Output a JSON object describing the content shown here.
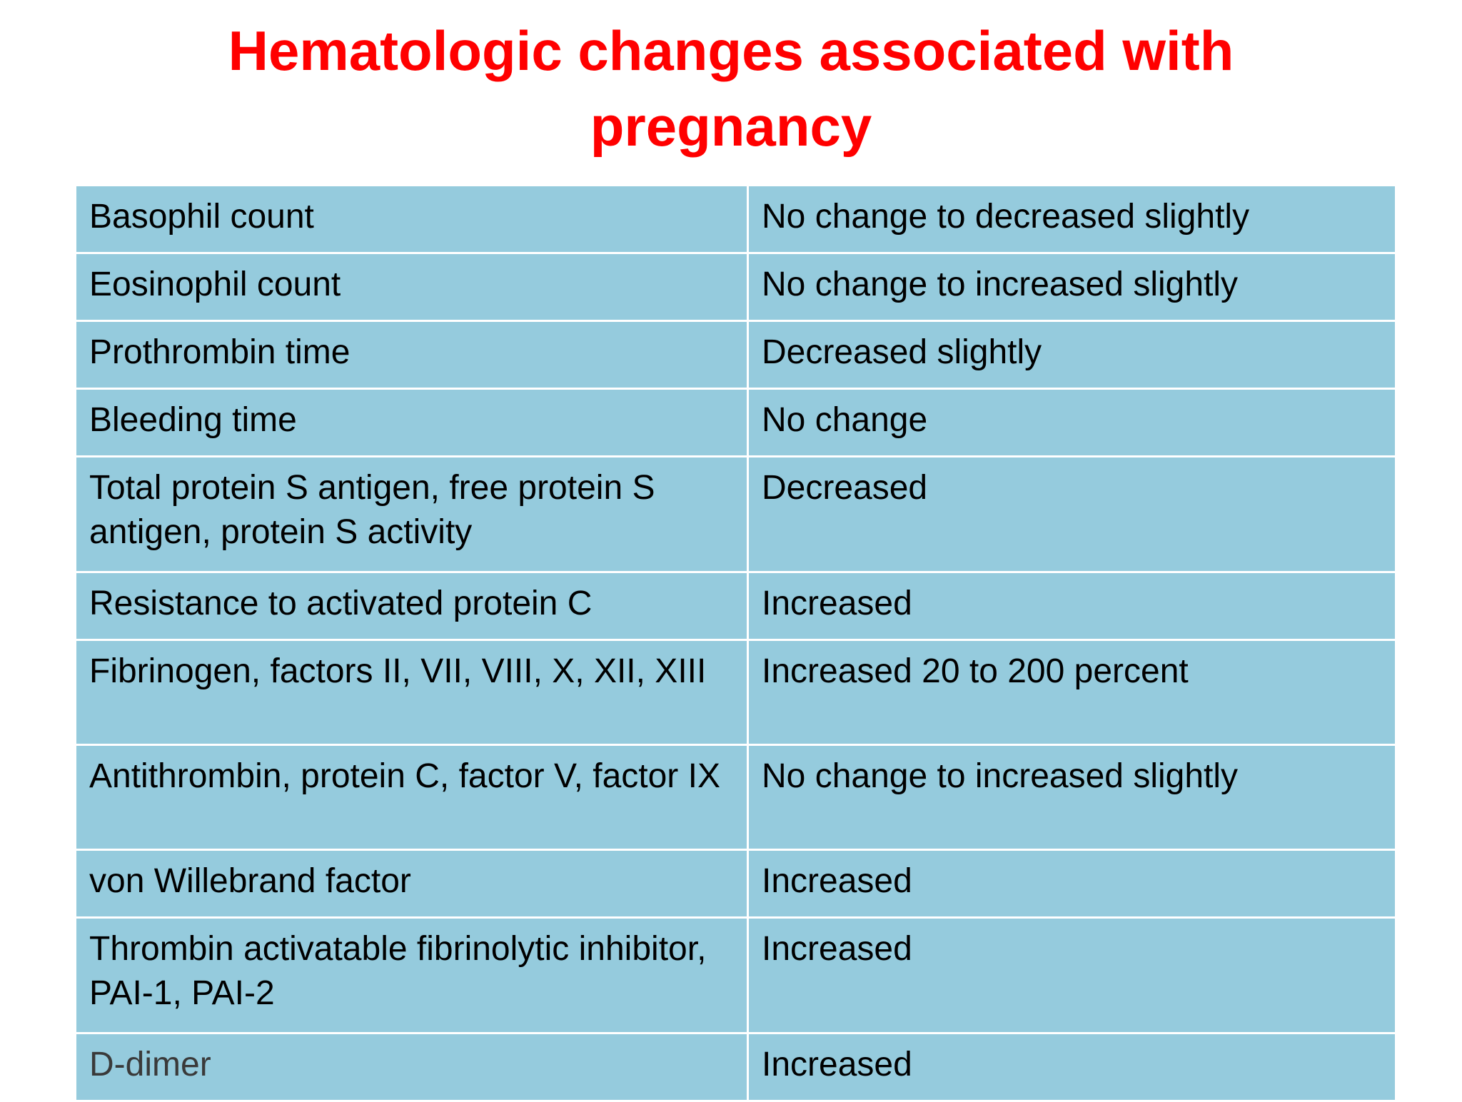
{
  "title": {
    "line1": "Hematologic changes associated with",
    "line2": "pregnancy"
  },
  "colors": {
    "title": "#ff0000",
    "cell_background": "#95cbdd",
    "cell_border": "#ffffff"
  },
  "table": {
    "rows": [
      {
        "parameter": "Basophil count",
        "change": "No change to decreased slightly"
      },
      {
        "parameter": "Eosinophil count",
        "change": "No change to increased slightly"
      },
      {
        "parameter": "Prothrombin time",
        "change": "Decreased slightly"
      },
      {
        "parameter": "Bleeding time",
        "change": "No change"
      },
      {
        "parameter": "Total protein S antigen, free protein S antigen, protein S activity",
        "change": "Decreased"
      },
      {
        "parameter": "Resistance to activated protein C",
        "change": "Increased"
      },
      {
        "parameter": "Fibrinogen, factors II, VII, VIII, X, XII, XIII",
        "change": "Increased 20 to 200 percent"
      },
      {
        "parameter": "Antithrombin, protein C, factor V, factor IX",
        "change": "No change to increased slightly"
      },
      {
        "parameter": "von Willebrand factor",
        "change": "Increased"
      },
      {
        "parameter": "Thrombin activatable fibrinolytic inhibitor, PAI-1, PAI-2",
        "change": "Increased"
      },
      {
        "parameter": "D-dimer",
        "change": "Increased"
      }
    ]
  }
}
